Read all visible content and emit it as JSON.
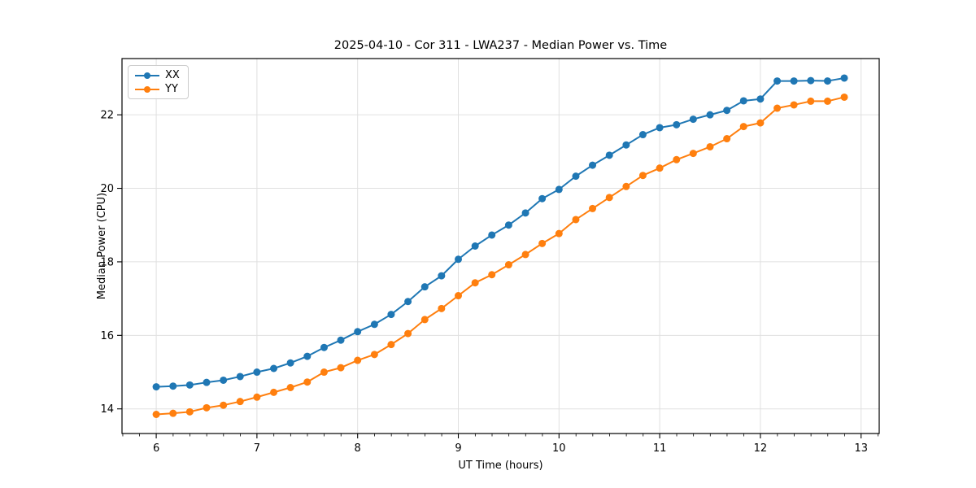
{
  "chart_data": {
    "type": "line",
    "title": "2025-04-10 - Cor 311 - LWA237 - Median Power vs. Time",
    "xlabel": "UT Time (hours)",
    "ylabel": "Median Power (CPU)",
    "xlim": [
      5.66,
      13.18
    ],
    "ylim": [
      13.33,
      23.53
    ],
    "xticks": [
      6,
      7,
      8,
      9,
      10,
      11,
      12,
      13
    ],
    "yticks": [
      14,
      16,
      18,
      20,
      22
    ],
    "minor_xtick_step": 0.1667,
    "grid": "major-both",
    "legend_position": "upper-left",
    "x": [
      6.0,
      6.167,
      6.333,
      6.5,
      6.667,
      6.833,
      7.0,
      7.167,
      7.333,
      7.5,
      7.667,
      7.833,
      8.0,
      8.167,
      8.333,
      8.5,
      8.667,
      8.833,
      9.0,
      9.167,
      9.333,
      9.5,
      9.667,
      9.833,
      10.0,
      10.167,
      10.333,
      10.5,
      10.667,
      10.833,
      11.0,
      11.167,
      11.333,
      11.5,
      11.667,
      11.833,
      12.0,
      12.167,
      12.333,
      12.5,
      12.667,
      12.833
    ],
    "series": [
      {
        "name": "XX",
        "color": "#1f77b4",
        "values": [
          14.6,
          14.62,
          14.65,
          14.72,
          14.78,
          14.88,
          15.0,
          15.1,
          15.25,
          15.43,
          15.67,
          15.87,
          16.1,
          16.3,
          16.57,
          16.92,
          17.32,
          17.62,
          18.07,
          18.43,
          18.73,
          19.0,
          19.33,
          19.72,
          19.97,
          20.33,
          20.63,
          20.9,
          21.18,
          21.46,
          21.65,
          21.73,
          21.88,
          22.0,
          22.12,
          22.38,
          22.43,
          22.92,
          22.92,
          22.93,
          22.92,
          23.0
        ]
      },
      {
        "name": "YY",
        "color": "#ff7f0e",
        "values": [
          13.85,
          13.88,
          13.92,
          14.03,
          14.1,
          14.2,
          14.32,
          14.45,
          14.58,
          14.73,
          15.0,
          15.12,
          15.32,
          15.48,
          15.75,
          16.05,
          16.43,
          16.73,
          17.08,
          17.43,
          17.65,
          17.92,
          18.2,
          18.5,
          18.77,
          19.15,
          19.45,
          19.75,
          20.05,
          20.35,
          20.55,
          20.78,
          20.95,
          21.13,
          21.35,
          21.68,
          21.78,
          22.18,
          22.27,
          22.37,
          22.37,
          22.48
        ]
      }
    ],
    "colors": {
      "grid": "#e0e0e0",
      "spine": "#000000",
      "tick_label": "#000000"
    }
  }
}
